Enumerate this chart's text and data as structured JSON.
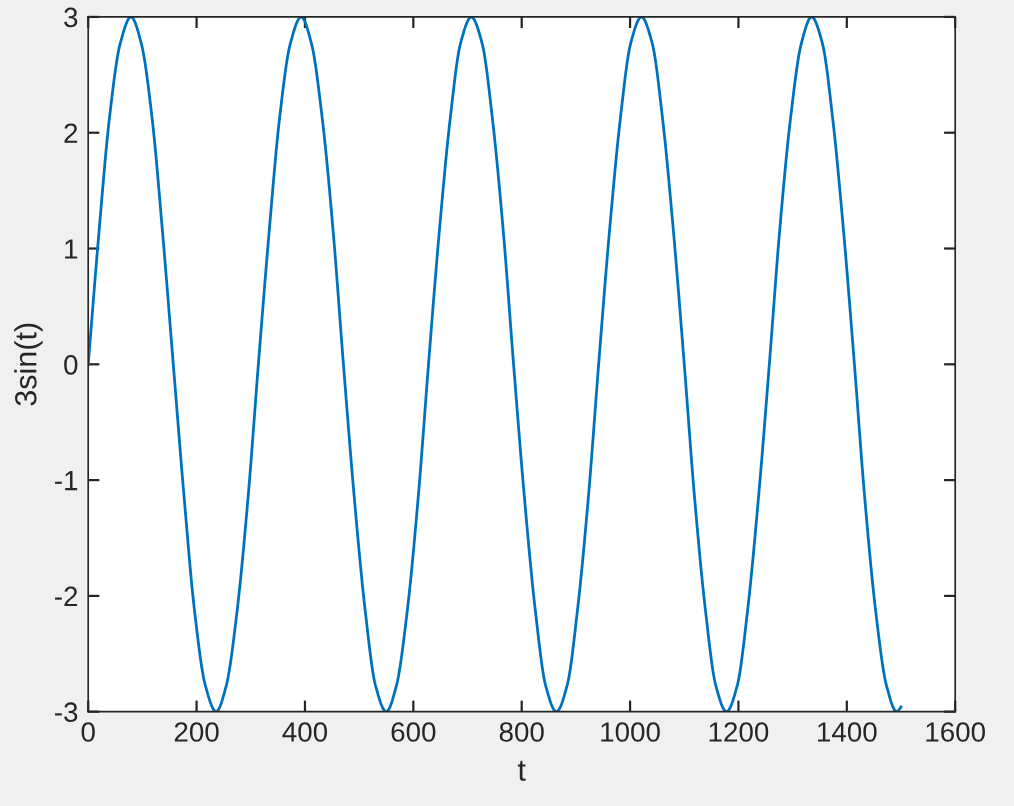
{
  "chart_data": {
    "type": "line",
    "xlabel": "t",
    "ylabel": "3sin(t)",
    "xlim": [
      0,
      1600
    ],
    "xticks": [
      0,
      200,
      400,
      600,
      800,
      1000,
      1200,
      1400,
      1600
    ],
    "ylim": [
      -3,
      3
    ],
    "yticks": [
      -3,
      -2,
      -1,
      0,
      1,
      2,
      3
    ],
    "grid": false,
    "marker": "none",
    "line_style": "solid",
    "series": [
      {
        "color": "#0072bd",
        "x": [
          0,
          20,
          39,
          59,
          79,
          98,
          118,
          137,
          157,
          177,
          196,
          216,
          236,
          255,
          275,
          295,
          314,
          334,
          353,
          373,
          393,
          412,
          432,
          452,
          471,
          491,
          511,
          530,
          550,
          569,
          589,
          609,
          628,
          648,
          668,
          687,
          707,
          727,
          746,
          766,
          785,
          805,
          825,
          844,
          864,
          884,
          903,
          923,
          942,
          962,
          982,
          1001,
          1021,
          1041,
          1060,
          1080,
          1100,
          1119,
          1139,
          1158,
          1178,
          1198,
          1217,
          1237,
          1257,
          1276,
          1296,
          1316,
          1335,
          1355,
          1374,
          1394,
          1414,
          1433,
          1453,
          1473,
          1492,
          1500
        ],
        "values": [
          0,
          1.15,
          2.12,
          2.77,
          3,
          2.77,
          2.12,
          1.15,
          0,
          -1.15,
          -2.12,
          -2.77,
          -3,
          -2.77,
          -2.12,
          -1.15,
          0,
          1.15,
          2.12,
          2.77,
          3,
          2.77,
          2.12,
          1.15,
          0,
          -1.15,
          -2.12,
          -2.77,
          -3,
          -2.77,
          -2.12,
          -1.15,
          0,
          1.15,
          2.12,
          2.77,
          3,
          2.77,
          2.12,
          1.15,
          0,
          -1.15,
          -2.12,
          -2.77,
          -3,
          -2.77,
          -2.12,
          -1.15,
          0,
          1.15,
          2.12,
          2.77,
          3,
          2.77,
          2.12,
          1.15,
          0,
          -1.15,
          -2.12,
          -2.77,
          -3,
          -2.77,
          -2.12,
          -1.15,
          0,
          1.15,
          2.12,
          2.77,
          3,
          2.77,
          2.12,
          1.15,
          0,
          -1.15,
          -2.12,
          -2.77,
          -3,
          -2.96
        ]
      }
    ]
  }
}
